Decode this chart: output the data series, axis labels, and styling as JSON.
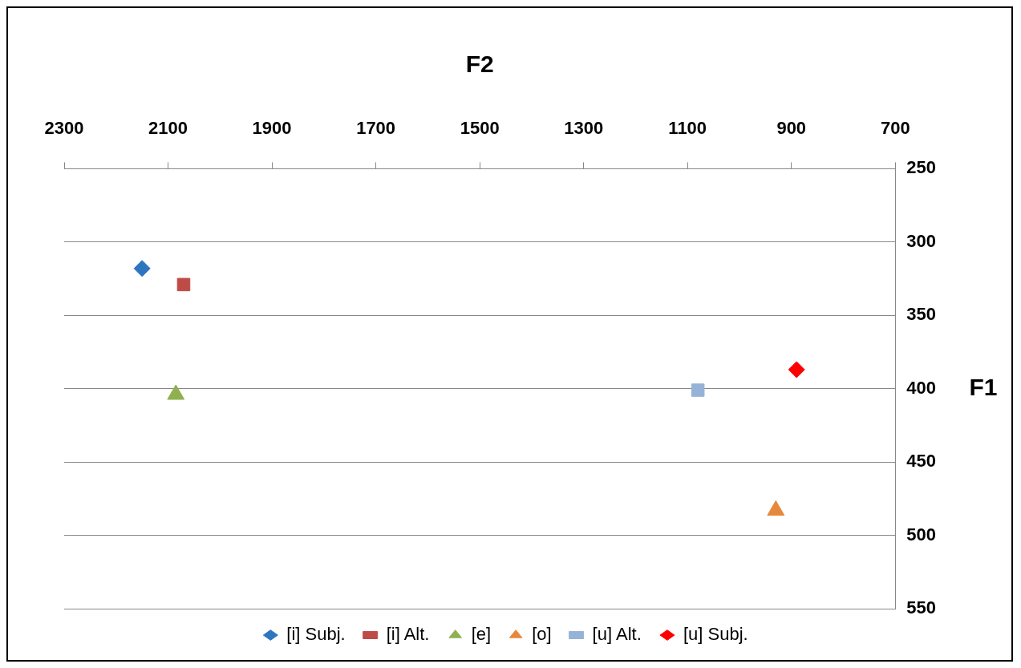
{
  "chart_data": {
    "type": "scatter",
    "xlabel": "F2",
    "ylabel": "F1",
    "xlim": [
      2300,
      700
    ],
    "xticks": [
      2300,
      2100,
      1900,
      1700,
      1500,
      1300,
      1100,
      900,
      700
    ],
    "ylim": [
      550,
      250
    ],
    "yticks": [
      250,
      300,
      350,
      400,
      450,
      500,
      550
    ],
    "grid": "y",
    "legend": "bottom",
    "series": [
      {
        "name": "[i] Subj.",
        "color": "#2e75c0",
        "marker": "diamond",
        "x": [
          2150
        ],
        "values": [
          318
        ]
      },
      {
        "name": "[i] Alt.",
        "color": "#be4b48",
        "marker": "square",
        "x": [
          2070
        ],
        "values": [
          329
        ]
      },
      {
        "name": "[e]",
        "color": "#8fb050",
        "marker": "triangle",
        "x": [
          2085
        ],
        "values": [
          404
        ]
      },
      {
        "name": "[o]",
        "color": "#e6883c",
        "marker": "triangle",
        "x": [
          930
        ],
        "values": [
          483
        ]
      },
      {
        "name": "[u] Alt.",
        "color": "#95b3d7",
        "marker": "square",
        "x": [
          1080
        ],
        "values": [
          401
        ]
      },
      {
        "name": "[u] Subj.",
        "color": "#ff0000",
        "marker": "diamond",
        "x": [
          890
        ],
        "values": [
          387
        ]
      }
    ]
  }
}
